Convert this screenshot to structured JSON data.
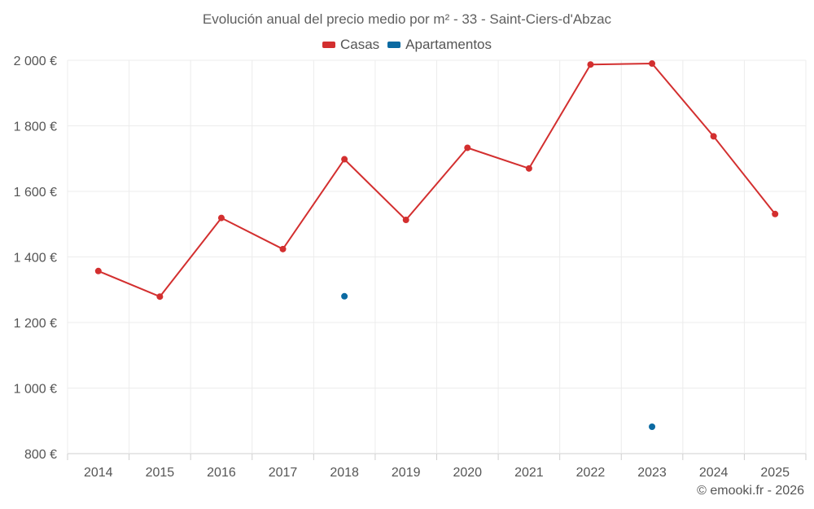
{
  "chart_data": {
    "type": "line",
    "title": "Evolución anual del precio medio por m² - 33 - Saint-Ciers-d'Abzac",
    "categories": [
      "2014",
      "2015",
      "2016",
      "2017",
      "2018",
      "2019",
      "2020",
      "2021",
      "2022",
      "2023",
      "2024",
      "2025"
    ],
    "y_ticks": [
      "800 €",
      "1 000 €",
      "1 200 €",
      "1 400 €",
      "1 600 €",
      "1 800 €",
      "2 000 €"
    ],
    "ylim": [
      800,
      2000
    ],
    "xlabel": "",
    "ylabel": "",
    "grid": true,
    "legend_position": "top-center",
    "series": [
      {
        "name": "Casas",
        "color": "#d32f2f",
        "values": [
          1357,
          1279,
          1519,
          1424,
          1698,
          1513,
          1733,
          1670,
          1987,
          1990,
          1768,
          1531
        ]
      },
      {
        "name": "Apartamentos",
        "color": "#0b6aa2",
        "values": [
          null,
          null,
          null,
          null,
          1280,
          null,
          null,
          null,
          null,
          882,
          null,
          null
        ]
      }
    ]
  },
  "credit": "© emooki.fr - 2026"
}
